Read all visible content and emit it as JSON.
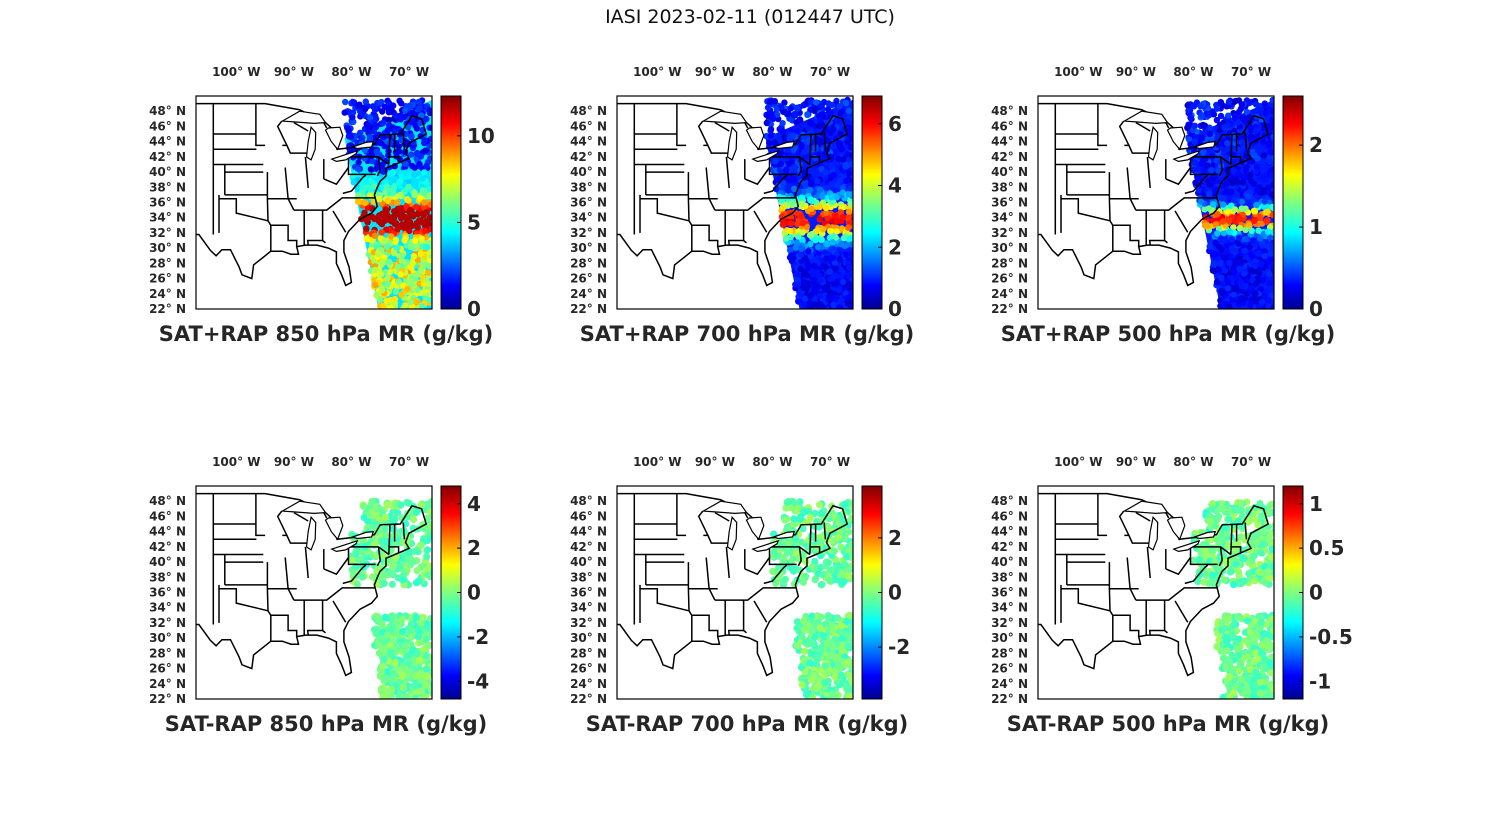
{
  "title": "IASI 2023-02-11 (012447 UTC)",
  "lon_labels": [
    "100° W",
    "90° W",
    "80° W",
    "70° W"
  ],
  "lon_values": [
    -100,
    -90,
    -80,
    -70
  ],
  "lat_labels": [
    "48° N",
    "46° N",
    "44° N",
    "42° N",
    "40° N",
    "38° N",
    "36° N",
    "34° N",
    "32° N",
    "30° N",
    "28° N",
    "26° N",
    "24° N",
    "22° N"
  ],
  "lat_values": [
    48,
    46,
    44,
    42,
    40,
    38,
    36,
    34,
    32,
    30,
    28,
    26,
    24,
    22
  ],
  "map_extent": {
    "lon": [
      -107,
      -66
    ],
    "lat": [
      22,
      50
    ]
  },
  "colormap": "jet",
  "panels": [
    {
      "id": "p1",
      "label": "SAT+RAP 850 hPa MR (g/kg)",
      "field": "sum",
      "clim": [
        0,
        12.3
      ],
      "cb_ticks": [
        0,
        5,
        10
      ],
      "cb_tick_labels": [
        "0",
        "5",
        "10"
      ]
    },
    {
      "id": "p2",
      "label": "SAT+RAP 700 hPa MR (g/kg)",
      "field": "sum",
      "clim": [
        0,
        6.9
      ],
      "cb_ticks": [
        0,
        2,
        4,
        6
      ],
      "cb_tick_labels": [
        "0",
        "2",
        "4",
        "6"
      ]
    },
    {
      "id": "p3",
      "label": "SAT+RAP 500 hPa MR (g/kg)",
      "field": "sum",
      "clim": [
        0,
        2.6
      ],
      "cb_ticks": [
        0,
        1,
        2
      ],
      "cb_tick_labels": [
        "0",
        "1",
        "2"
      ]
    },
    {
      "id": "p4",
      "label": "SAT-RAP 850 hPa MR (g/kg)",
      "field": "diff",
      "clim": [
        -4.8,
        4.8
      ],
      "cb_ticks": [
        -4,
        -2,
        0,
        2,
        4
      ],
      "cb_tick_labels": [
        "-4",
        "-2",
        "0",
        "2",
        "4"
      ]
    },
    {
      "id": "p5",
      "label": "SAT-RAP 700 hPa MR (g/kg)",
      "field": "diff",
      "clim": [
        -3.9,
        3.9
      ],
      "cb_ticks": [
        -2,
        0,
        2
      ],
      "cb_tick_labels": [
        "-2",
        "0",
        "2"
      ]
    },
    {
      "id": "p6",
      "label": "SAT-RAP 500 hPa MR (g/kg)",
      "field": "diff",
      "clim": [
        -1.2,
        1.2
      ],
      "cb_ticks": [
        -1,
        -0.5,
        0,
        0.5,
        1
      ],
      "cb_tick_labels": [
        "-1",
        "-0.5",
        "0",
        "0.5",
        "1"
      ]
    }
  ]
}
